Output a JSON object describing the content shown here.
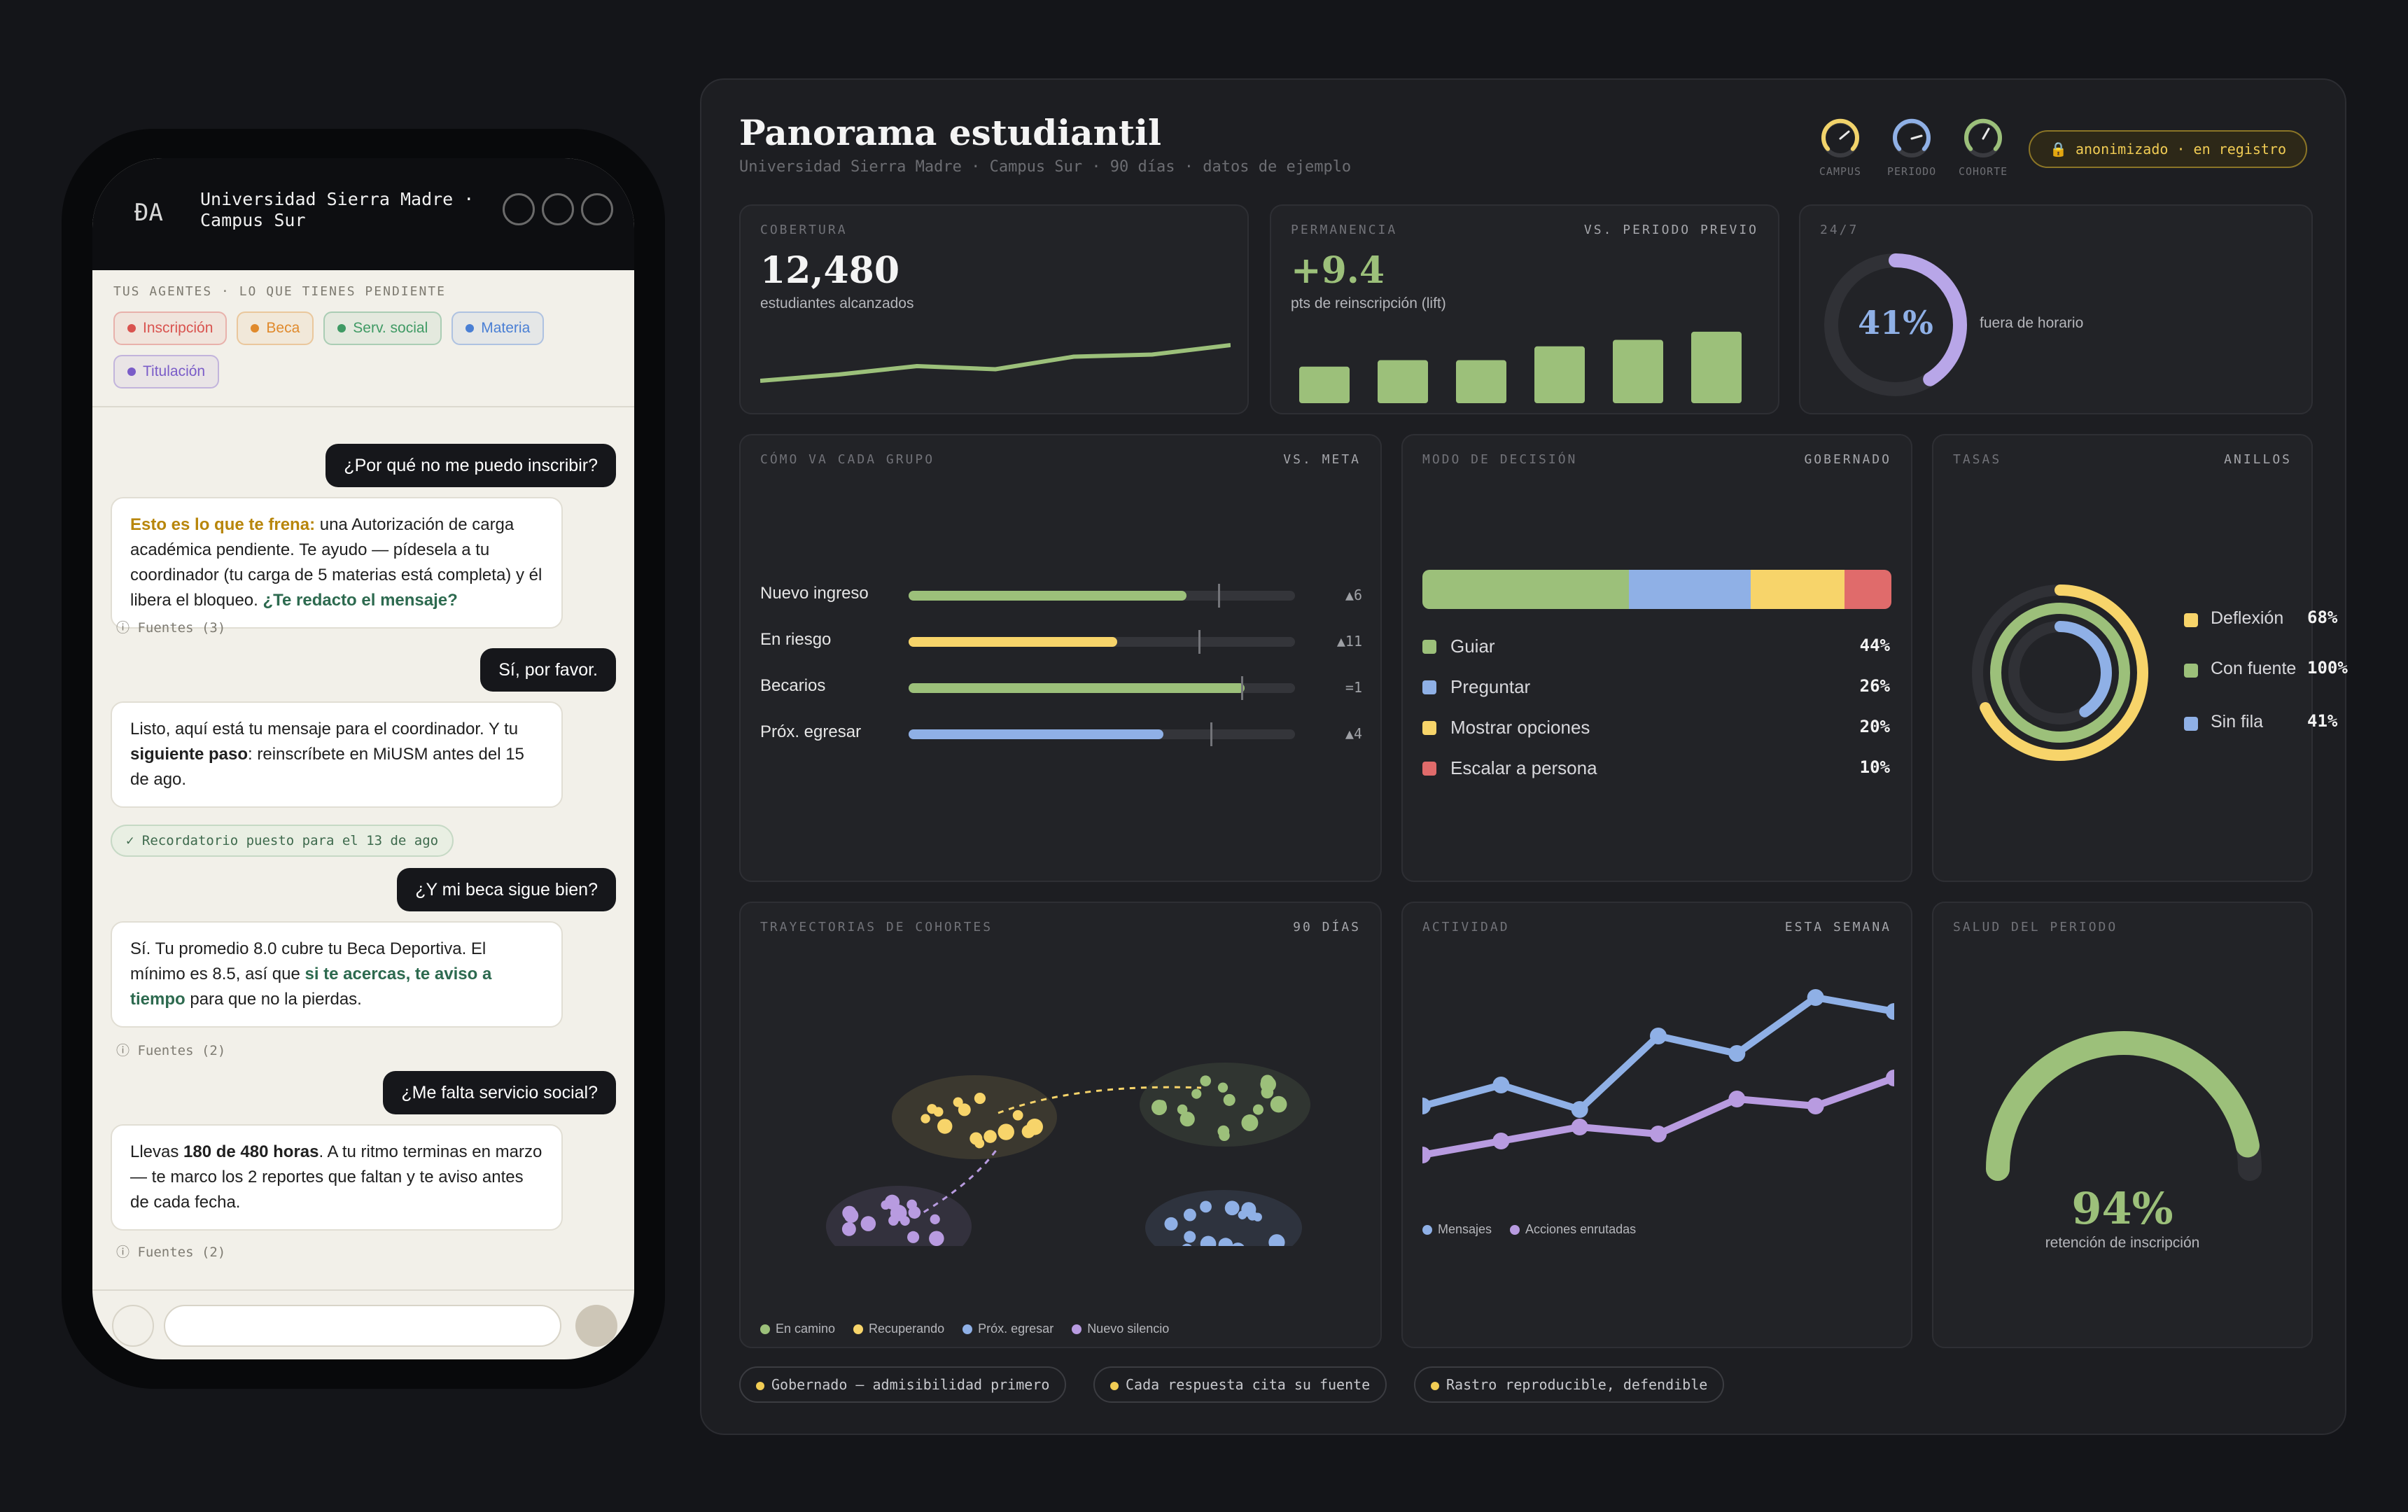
{
  "phone": {
    "logo": "ÐA",
    "title_line1": "Universidad Sierra Madre ·",
    "title_line2": "Campus Sur",
    "agents_label": "TUS AGENTES · LO QUE TIENES PENDIENTE",
    "chips": [
      {
        "label": "Inscripción",
        "color": "#d9534f"
      },
      {
        "label": "Beca",
        "color": "#e08a2c"
      },
      {
        "label": "Serv. social",
        "color": "#3f9a64"
      },
      {
        "label": "Materia",
        "color": "#4a7fd4"
      },
      {
        "label": "Titulación",
        "color": "#7a5cc8"
      }
    ],
    "messages": {
      "u1": "¿Por qué no me puedo inscribir?",
      "a1_lead": "Esto es lo que te frena:",
      "a1_body": " una Autorización de carga académica pendiente. Te ayudo — pídesela a tu coordinador (tu carga de 5 materias está completa) y él libera el bloqueo. ",
      "a1_link": "¿Te redacto el mensaje?",
      "a1_sources": "ⓘ Fuentes (3)",
      "u2": "Sí, por favor.",
      "a2_pre": "Listo, aquí está tu mensaje para el coordinador. Y tu ",
      "a2_bold": "siguiente paso",
      "a2_post": ": reinscríbete en MiUSM antes del 15 de ago.",
      "reminder": "✓ Recordatorio puesto para el 13 de ago",
      "u3": "¿Y mi beca sigue bien?",
      "a3_pre": "Sí. Tu promedio 8.0 cubre tu Beca Deportiva. El mínimo es 8.5, así que ",
      "a3_link": "si te acercas, te aviso a tiempo",
      "a3_post": " para que no la pierdas.",
      "a3_sources": "ⓘ Fuentes (2)",
      "u4": "¿Me falta servicio social?",
      "a4_pre": "Llevas ",
      "a4_bold": "180 de 480 horas",
      "a4_post": ". A tu ritmo terminas en marzo — te marco los 2 reportes que faltan y te aviso antes de cada fecha.",
      "a4_sources": "ⓘ Fuentes (2)"
    }
  },
  "dashboard": {
    "title": "Panorama estudiantil",
    "subtitle": "Universidad Sierra Madre · Campus Sur · 90 días · datos de ejemplo",
    "gauges": [
      {
        "label": "CAMPUS",
        "color": "#f1d36b"
      },
      {
        "label": "PERIODO",
        "color": "#8fb0e6"
      },
      {
        "label": "COHORTE",
        "color": "#9cc07a"
      }
    ],
    "badge": "🔒 anonimizado · en registro",
    "coverage": {
      "label": "COBERTURA",
      "value": "12,480",
      "caption": "estudiantes alcanzados",
      "trend": [
        20,
        26,
        34,
        31,
        43,
        45,
        54
      ]
    },
    "permanence": {
      "label": "PERMANENCIA",
      "right": "VS. PERIODO PREVIO",
      "value": "+9.4",
      "caption": "pts de reinscripción (lift)",
      "bars": [
        45,
        53,
        53,
        70,
        78,
        88
      ]
    },
    "allday": {
      "label": "24/7",
      "value": "41%",
      "pct": 0.41,
      "caption": "fuera de horario"
    },
    "groups": {
      "label": "CÓMO VA CADA GRUPO",
      "right": "VS. META",
      "rows": [
        {
          "name": "Nuevo ingreso",
          "value": 0.72,
          "target": 0.8,
          "color": "#9cc07a",
          "delta": "▲6"
        },
        {
          "name": "En riesgo",
          "value": 0.54,
          "target": 0.75,
          "color": "#f7d46a",
          "delta": "▲11"
        },
        {
          "name": "Becarios",
          "value": 0.87,
          "target": 0.86,
          "color": "#9cc07a",
          "delta": "=1"
        },
        {
          "name": "Próx. egresar",
          "value": 0.66,
          "target": 0.78,
          "color": "#8fb0e6",
          "delta": "▲4"
        }
      ]
    },
    "decision": {
      "label": "MODO DE DECISIÓN",
      "right": "GOBERNADO",
      "items": [
        {
          "name": "Guiar",
          "pct": "44%",
          "value": 44,
          "color": "#9cc07a"
        },
        {
          "name": "Preguntar",
          "pct": "26%",
          "value": 26,
          "color": "#8fb0e6"
        },
        {
          "name": "Mostrar opciones",
          "pct": "20%",
          "value": 20,
          "color": "#f7d46a"
        },
        {
          "name": "Escalar a persona",
          "pct": "10%",
          "value": 10,
          "color": "#e06b6b"
        }
      ]
    },
    "rates": {
      "label": "TASAS",
      "right": "ANILLOS",
      "items": [
        {
          "name": "Deflexión",
          "pct": "68%",
          "value": 0.68,
          "color": "#f7d46a"
        },
        {
          "name": "Con fuente",
          "pct": "100%",
          "value": 1.0,
          "color": "#9cc07a"
        },
        {
          "name": "Sin fila",
          "pct": "41%",
          "value": 0.41,
          "color": "#8fb0e6"
        }
      ]
    },
    "cohorts": {
      "label": "TRAYECTORIAS DE COHORTES",
      "right": "90 DÍAS",
      "legend": [
        {
          "name": "En camino",
          "color": "#9cc07a"
        },
        {
          "name": "Recuperando",
          "color": "#f7d46a"
        },
        {
          "name": "Próx. egresar",
          "color": "#8fb0e6"
        },
        {
          "name": "Nuevo silencio",
          "color": "#b89be0"
        }
      ]
    },
    "chart_data": {
      "type": "line",
      "title": "ACTIVIDAD",
      "subtitle": "ESTA SEMANA",
      "x": [
        1,
        2,
        3,
        4,
        5,
        6,
        7
      ],
      "series": [
        {
          "name": "Mensajes",
          "color": "#8fb0e6",
          "values": [
            42,
            48,
            41,
            62,
            57,
            73,
            69
          ]
        },
        {
          "name": "Acciones enrutadas",
          "color": "#b89be0",
          "values": [
            28,
            32,
            36,
            34,
            44,
            42,
            50
          ]
        }
      ],
      "ylim": [
        20,
        80
      ]
    },
    "health": {
      "label": "SALUD DEL PERIODO",
      "value": "94%",
      "pct": 0.94,
      "caption": "retención de inscripción"
    },
    "pills": [
      "Gobernado — admisibilidad primero",
      "Cada respuesta cita su fuente",
      "Rastro reproducible, defendible"
    ]
  }
}
